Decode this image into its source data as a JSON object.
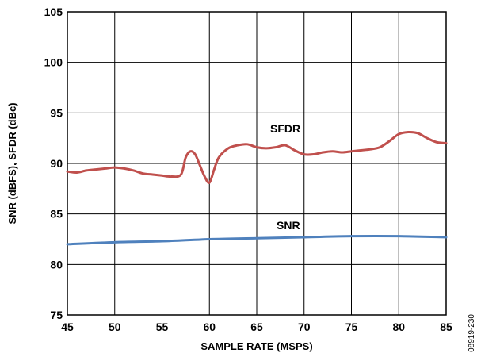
{
  "chart_data": {
    "type": "line",
    "xlabel": "SAMPLE RATE (MSPS)",
    "ylabel": "SNR (dBFS), SFDR (dBc)",
    "xlim": [
      45,
      85
    ],
    "ylim": [
      75,
      105
    ],
    "xticks": [
      45,
      50,
      55,
      60,
      65,
      70,
      75,
      80,
      85
    ],
    "yticks": [
      75,
      80,
      85,
      90,
      95,
      100,
      105
    ],
    "grid": true,
    "figure_id": "08919-230",
    "series": [
      {
        "name": "SFDR",
        "color": "#c0504d",
        "x": [
          45,
          46,
          47,
          48,
          49,
          50,
          51,
          52,
          53,
          54,
          55,
          56,
          57,
          57.5,
          58,
          58.5,
          59,
          59.5,
          60,
          60.5,
          61,
          62,
          63,
          64,
          65,
          66,
          67,
          68,
          69,
          70,
          71,
          72,
          73,
          74,
          75,
          76,
          77,
          78,
          79,
          80,
          81,
          82,
          83,
          84,
          85
        ],
        "values": [
          89.2,
          89.1,
          89.3,
          89.4,
          89.5,
          89.6,
          89.5,
          89.3,
          89.0,
          88.9,
          88.8,
          88.7,
          88.9,
          90.6,
          91.2,
          90.9,
          89.8,
          88.7,
          88.1,
          89.4,
          90.6,
          91.5,
          91.8,
          91.9,
          91.6,
          91.5,
          91.6,
          91.8,
          91.3,
          90.9,
          90.9,
          91.1,
          91.2,
          91.1,
          91.2,
          91.3,
          91.4,
          91.6,
          92.2,
          92.9,
          93.1,
          93.0,
          92.5,
          92.1,
          92.0
        ]
      },
      {
        "name": "SNR",
        "color": "#4f81bd",
        "x": [
          45,
          50,
          55,
          60,
          65,
          70,
          75,
          80,
          85
        ],
        "values": [
          82.0,
          82.2,
          82.3,
          82.5,
          82.6,
          82.7,
          82.8,
          82.8,
          82.7
        ]
      }
    ]
  }
}
